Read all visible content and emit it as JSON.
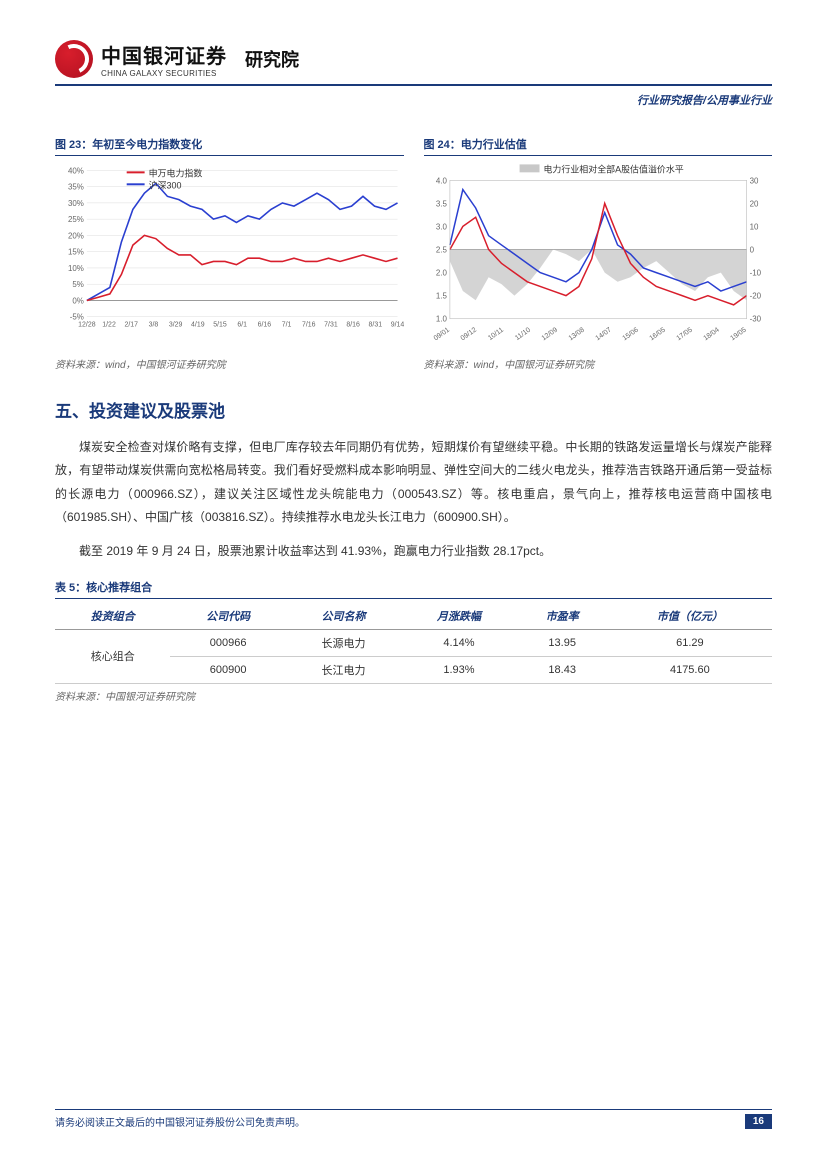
{
  "header": {
    "cn_name": "中国银河证券",
    "en_name": "CHINA GALAXY SECURITIES",
    "dept": "研究院",
    "subhead": "行业研究报告/公用事业行业"
  },
  "chart23": {
    "title": "图 23：年初至今电力指数变化",
    "type": "line",
    "legend": [
      "申万电力指数",
      "沪深300"
    ],
    "series_colors": [
      "#d81e2c",
      "#2a3fd0"
    ],
    "x_labels": [
      "12/28",
      "1/22",
      "2/17",
      "3/8",
      "3/29",
      "4/19",
      "5/15",
      "6/1",
      "6/16",
      "7/1",
      "7/16",
      "7/31",
      "8/16",
      "8/31",
      "9/14"
    ],
    "y_labels": [
      "-5%",
      "0%",
      "5%",
      "10%",
      "15%",
      "20%",
      "25%",
      "30%",
      "35%",
      "40%"
    ],
    "ylim": [
      -5,
      40
    ],
    "series1_y": [
      0,
      1,
      2,
      8,
      17,
      20,
      19,
      16,
      14,
      14,
      11,
      12,
      12,
      11,
      13,
      13,
      12,
      12,
      13,
      12,
      12,
      13,
      12,
      13,
      14,
      13,
      12,
      13
    ],
    "series2_y": [
      0,
      2,
      4,
      18,
      28,
      33,
      36,
      32,
      31,
      29,
      28,
      25,
      26,
      24,
      26,
      25,
      28,
      30,
      29,
      31,
      33,
      31,
      28,
      29,
      32,
      29,
      28,
      30
    ],
    "background_color": "#ffffff",
    "axis_color": "#999999",
    "label_fontsize": 8,
    "source": "资料来源：wind，中国银河证券研究院"
  },
  "chart24": {
    "title": "图 24：电力行业估值",
    "type": "line-dual-axis-with-area",
    "legend_area": "电力行业相对全部A股估值溢价水平",
    "area_color": "#b0b0b0",
    "series_colors": [
      "#d81e2c",
      "#2a3fd0"
    ],
    "x_labels": [
      "09/01",
      "09/12",
      "10/11",
      "11/10",
      "12/09",
      "13/08",
      "14/07",
      "15/06",
      "16/05",
      "17/05",
      "18/04",
      "19/05"
    ],
    "y_left_labels": [
      "1.0",
      "1.5",
      "2.0",
      "2.5",
      "3.0",
      "3.5",
      "4.0"
    ],
    "y_left_lim": [
      1.0,
      4.0
    ],
    "y_right_labels": [
      "-30",
      "-20",
      "-10",
      "0",
      "10",
      "20",
      "30"
    ],
    "y_right_lim": [
      -30,
      30
    ],
    "area_y": [
      -5,
      -18,
      -22,
      -12,
      -15,
      -20,
      -15,
      -8,
      0,
      -2,
      -5,
      0,
      -10,
      -14,
      -12,
      -8,
      -5,
      -10,
      -15,
      -18,
      -12,
      -10,
      -18,
      -22
    ],
    "series_red_y": [
      2.5,
      3.0,
      3.2,
      2.5,
      2.2,
      2.0,
      1.8,
      1.7,
      1.6,
      1.5,
      1.7,
      2.3,
      3.5,
      2.8,
      2.2,
      1.9,
      1.7,
      1.6,
      1.5,
      1.4,
      1.5,
      1.4,
      1.3,
      1.5
    ],
    "series_blue_y": [
      2.6,
      3.8,
      3.4,
      2.8,
      2.6,
      2.4,
      2.2,
      2.0,
      1.9,
      1.8,
      2.0,
      2.5,
      3.3,
      2.6,
      2.4,
      2.1,
      2.0,
      1.9,
      1.8,
      1.7,
      1.8,
      1.6,
      1.7,
      1.8
    ],
    "background_color": "#ffffff",
    "axis_color": "#999999",
    "label_fontsize": 8,
    "source": "资料来源：wind，中国银河证券研究院"
  },
  "section5": {
    "title": "五、投资建议及股票池",
    "para1": "煤炭安全检查对煤价略有支撑，但电厂库存较去年同期仍有优势，短期煤价有望继续平稳。中长期的铁路发运量增长与煤炭产能释放，有望带动煤炭供需向宽松格局转变。我们看好受燃料成本影响明显、弹性空间大的二线火电龙头，推荐浩吉铁路开通后第一受益标的长源电力（000966.SZ），建议关注区域性龙头皖能电力（000543.SZ）等。核电重启，景气向上，推荐核电运营商中国核电（601985.SH）、中国广核（003816.SZ）。持续推荐水电龙头长江电力（600900.SH）。",
    "para2": "截至 2019 年 9 月 24 日，股票池累计收益率达到 41.93%，跑赢电力行业指数 28.17pct。"
  },
  "table5": {
    "title": "表 5：核心推荐组合",
    "columns": [
      "投资组合",
      "公司代码",
      "公司名称",
      "月涨跌幅",
      "市盈率",
      "市值（亿元）"
    ],
    "group_label": "核心组合",
    "rows": [
      [
        "000966",
        "长源电力",
        "4.14%",
        "13.95",
        "61.29"
      ],
      [
        "600900",
        "长江电力",
        "1.93%",
        "18.43",
        "4175.60"
      ]
    ],
    "source": "资料来源：中国银河证券研究院"
  },
  "footer": {
    "text": "请务必阅读正文最后的中国银河证券股份公司免责声明。",
    "page": "16"
  }
}
